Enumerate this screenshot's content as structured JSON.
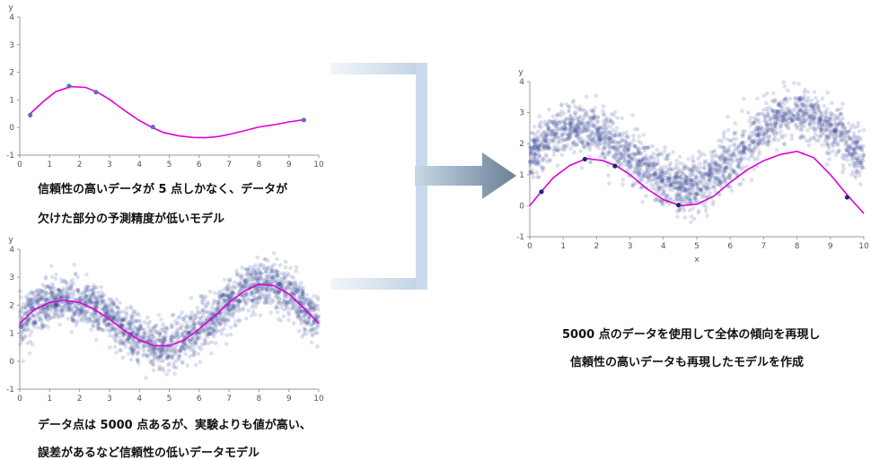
{
  "colors": {
    "curve": "#e000d8",
    "points": "#2b3f8f",
    "keypoints": "#1a2a70",
    "bracket": "#cfdeed",
    "arrow_dark": "#6b7f96",
    "arrow_light": "#c7d8e8"
  },
  "captions": {
    "top_left_1": "信頼性の高いデータが 5 点しかなく、データが",
    "top_left_2": "欠けた部分の予測精度が低いモデル",
    "bottom_left_1": "データ点は 5000 点あるが、実験よりも値が高い、",
    "bottom_left_2": "誤差があるなど信頼性の低いデータモデル",
    "right_1": "5000 点のデータを使用して全体の傾向を再現し",
    "right_2": "信頼性の高いデータも再現したモデルを作成"
  },
  "chart_data": [
    {
      "type": "line",
      "xlabel": "",
      "ylabel": "y",
      "xlim": [
        0,
        10
      ],
      "ylim": [
        -1,
        4
      ],
      "xticks": [
        "0",
        "1",
        "2",
        "3",
        "4",
        "5",
        "6",
        "7",
        "8",
        "9",
        "10"
      ],
      "yticks": [
        "-1",
        "0",
        "1",
        "2",
        "3",
        "4"
      ],
      "curve": {
        "x": [
          0.3,
          0.8,
          1.2,
          1.7,
          2.2,
          2.6,
          3.0,
          3.5,
          4.0,
          4.4,
          4.8,
          5.3,
          5.8,
          6.2,
          6.6,
          7.0,
          7.5,
          8.0,
          8.5,
          9.0,
          9.5
        ],
        "y": [
          0.45,
          0.95,
          1.3,
          1.48,
          1.45,
          1.28,
          1.02,
          0.62,
          0.25,
          0.02,
          -0.18,
          -0.3,
          -0.36,
          -0.37,
          -0.33,
          -0.25,
          -0.12,
          0.02,
          0.1,
          0.2,
          0.28
        ]
      },
      "key_points": {
        "x": [
          0.35,
          1.65,
          2.55,
          4.45,
          9.5
        ],
        "y": [
          0.45,
          1.5,
          1.28,
          0.02,
          0.27
        ]
      }
    },
    {
      "type": "scatter",
      "xlabel": "",
      "ylabel": "y",
      "xlim": [
        0,
        10
      ],
      "ylim": [
        -1,
        4
      ],
      "xticks": [
        "0",
        "1",
        "2",
        "3",
        "4",
        "5",
        "6",
        "7",
        "8",
        "9",
        "10"
      ],
      "yticks": [
        "-1",
        "0",
        "1",
        "2",
        "3",
        "4"
      ],
      "n_points": 5000,
      "trend": {
        "x": [
          0,
          0.5,
          1,
          1.5,
          2,
          2.5,
          3,
          3.5,
          4,
          4.5,
          5,
          5.5,
          6,
          6.5,
          7,
          7.5,
          8,
          8.5,
          9,
          9.5,
          10
        ],
        "y": [
          1.35,
          1.85,
          2.1,
          2.18,
          2.1,
          1.85,
          1.5,
          1.1,
          0.75,
          0.55,
          0.55,
          0.75,
          1.15,
          1.6,
          2.1,
          2.5,
          2.75,
          2.7,
          2.4,
          1.9,
          1.35
        ]
      }
    },
    {
      "type": "scatter",
      "xlabel": "x",
      "ylabel": "y",
      "xlim": [
        0,
        10
      ],
      "ylim": [
        -1,
        4
      ],
      "xticks": [
        "0",
        "1",
        "2",
        "3",
        "4",
        "5",
        "6",
        "7",
        "8",
        "9",
        "10"
      ],
      "yticks": [
        "-1",
        "0",
        "1",
        "2",
        "3",
        "4"
      ],
      "n_points": 5000,
      "cloud_trend": {
        "x": [
          0,
          0.5,
          1,
          1.5,
          2,
          2.5,
          3,
          3.5,
          4,
          4.5,
          5,
          5.5,
          6,
          6.5,
          7,
          7.5,
          8,
          8.5,
          9,
          9.5,
          10
        ],
        "y": [
          1.6,
          2.1,
          2.45,
          2.55,
          2.4,
          2.05,
          1.6,
          1.15,
          0.8,
          0.6,
          0.65,
          0.95,
          1.45,
          1.95,
          2.45,
          2.85,
          3.0,
          2.9,
          2.55,
          2.05,
          1.55
        ]
      },
      "curve": {
        "x": [
          0,
          0.3,
          0.7,
          1.2,
          1.7,
          2.2,
          2.6,
          3.0,
          3.5,
          4.0,
          4.5,
          5.0,
          5.5,
          6.0,
          6.5,
          7.0,
          7.5,
          8.0,
          8.5,
          9.0,
          9.5,
          10
        ],
        "y": [
          0.0,
          0.4,
          0.9,
          1.3,
          1.52,
          1.45,
          1.28,
          1.0,
          0.55,
          0.2,
          0.0,
          0.05,
          0.3,
          0.75,
          1.15,
          1.45,
          1.65,
          1.75,
          1.55,
          1.0,
          0.35,
          -0.25
        ]
      },
      "key_points": {
        "x": [
          0.35,
          1.65,
          2.55,
          4.45,
          9.5
        ],
        "y": [
          0.45,
          1.5,
          1.28,
          0.02,
          0.27
        ]
      }
    }
  ]
}
